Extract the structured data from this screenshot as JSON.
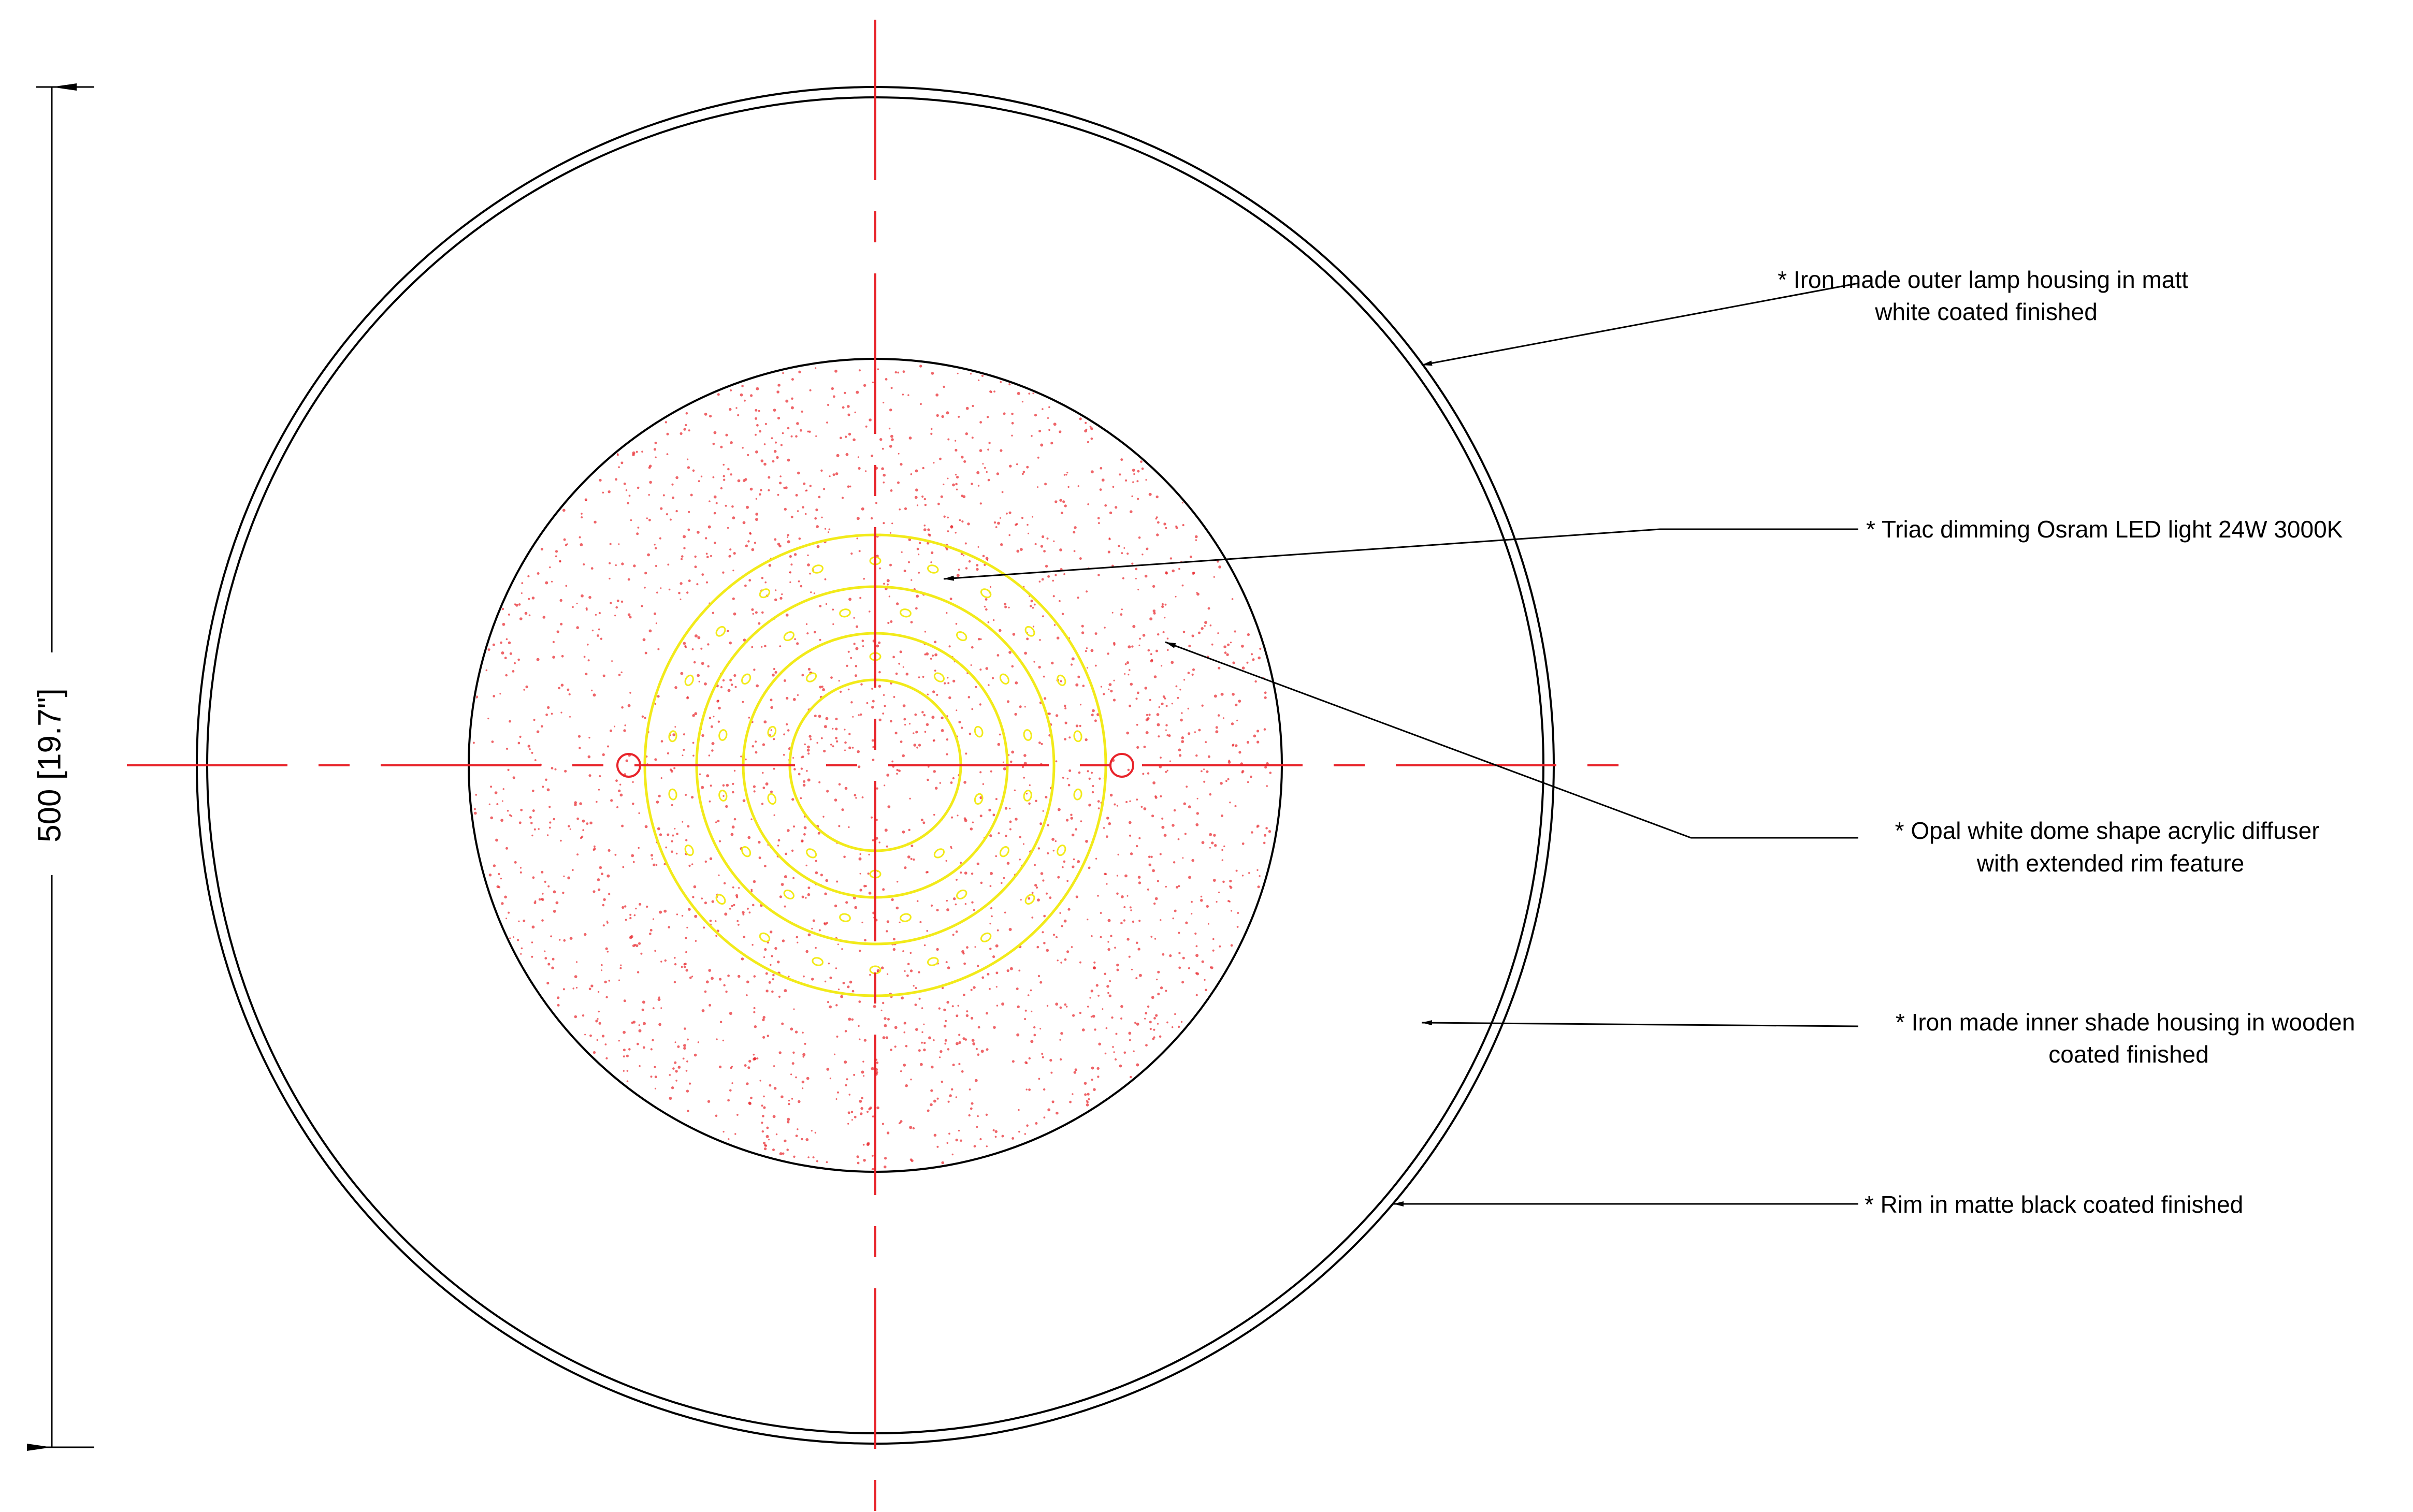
{
  "colors": {
    "outline": "#000000",
    "centerline": "#e8232a",
    "led_rings": "#f2ea1a",
    "diffuser_dots": "#e8232a",
    "background": "#ffffff"
  },
  "dimension": {
    "label": "500 [19.7\"]"
  },
  "callouts": [
    {
      "id": "outer-housing",
      "lines": [
        "* Iron made outer lamp housing in matt",
        "white coated finished"
      ]
    },
    {
      "id": "led-light",
      "lines": [
        "* Triac dimming Osram LED light 24W 3000K"
      ]
    },
    {
      "id": "diffuser",
      "lines": [
        "* Opal white dome shape acrylic diffuser",
        "with extended rim feature"
      ]
    },
    {
      "id": "inner-shade",
      "lines": [
        "* Iron made inner shade housing in wooden",
        "coated finished"
      ]
    },
    {
      "id": "rim",
      "lines": [
        "* Rim in matte black coated finished"
      ]
    }
  ]
}
